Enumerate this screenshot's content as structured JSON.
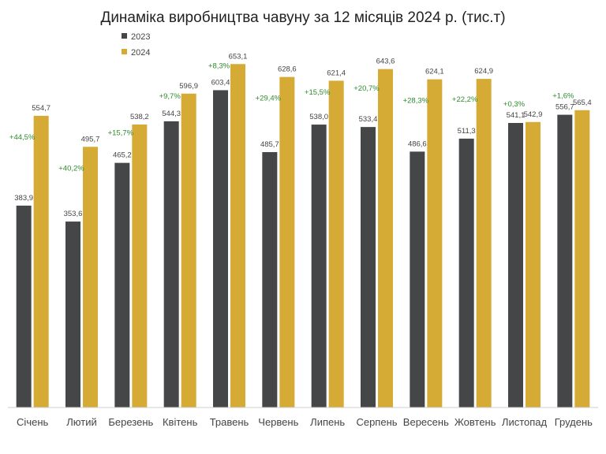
{
  "chart_data": {
    "type": "bar",
    "title": "Динаміка виробництва чавуну за 12 місяців 2024 р. (тис.т)",
    "xlabel": "",
    "ylabel": "",
    "ylim": [
      0,
      670
    ],
    "grid": false,
    "legend_position": "top-left",
    "categories": [
      "Січень",
      "Лютий",
      "Березень",
      "Квітень",
      "Травень",
      "Червень",
      "Липень",
      "Серпень",
      "Вересень",
      "Жовтень",
      "Листопад",
      "Грудень"
    ],
    "series": [
      {
        "name": "2023",
        "color": "#454648",
        "values": [
          383.9,
          353.6,
          465.2,
          544.3,
          603.4,
          485.7,
          538.0,
          533.4,
          486.6,
          511.3,
          541.1,
          556.7
        ],
        "labels": [
          "383,9",
          "353,6",
          "465,2",
          "544,3",
          "603,4",
          "485,7",
          "538,0",
          "533,4",
          "486,6",
          "511,3",
          "541,1",
          "556,7"
        ]
      },
      {
        "name": "2024",
        "color": "#d5ab35",
        "values": [
          554.7,
          495.7,
          538.2,
          596.9,
          653.1,
          628.6,
          621.4,
          643.6,
          624.1,
          624.9,
          542.9,
          565.4
        ],
        "labels": [
          "554,7",
          "495,7",
          "538,2",
          "596,9",
          "653,1",
          "628,6",
          "621,4",
          "643,6",
          "624,1",
          "624,9",
          "542,9",
          "565,4"
        ]
      }
    ],
    "change_labels": [
      "+44,5%",
      "+40,2%",
      "+15,7%",
      "+9,7%",
      "+8,3%",
      "+29,4%",
      "+15,5%",
      "+20,7%",
      "+28,3%",
      "+22,2%",
      "+0,3%",
      "+1,6%"
    ],
    "change_color": "#2e8b2e"
  }
}
